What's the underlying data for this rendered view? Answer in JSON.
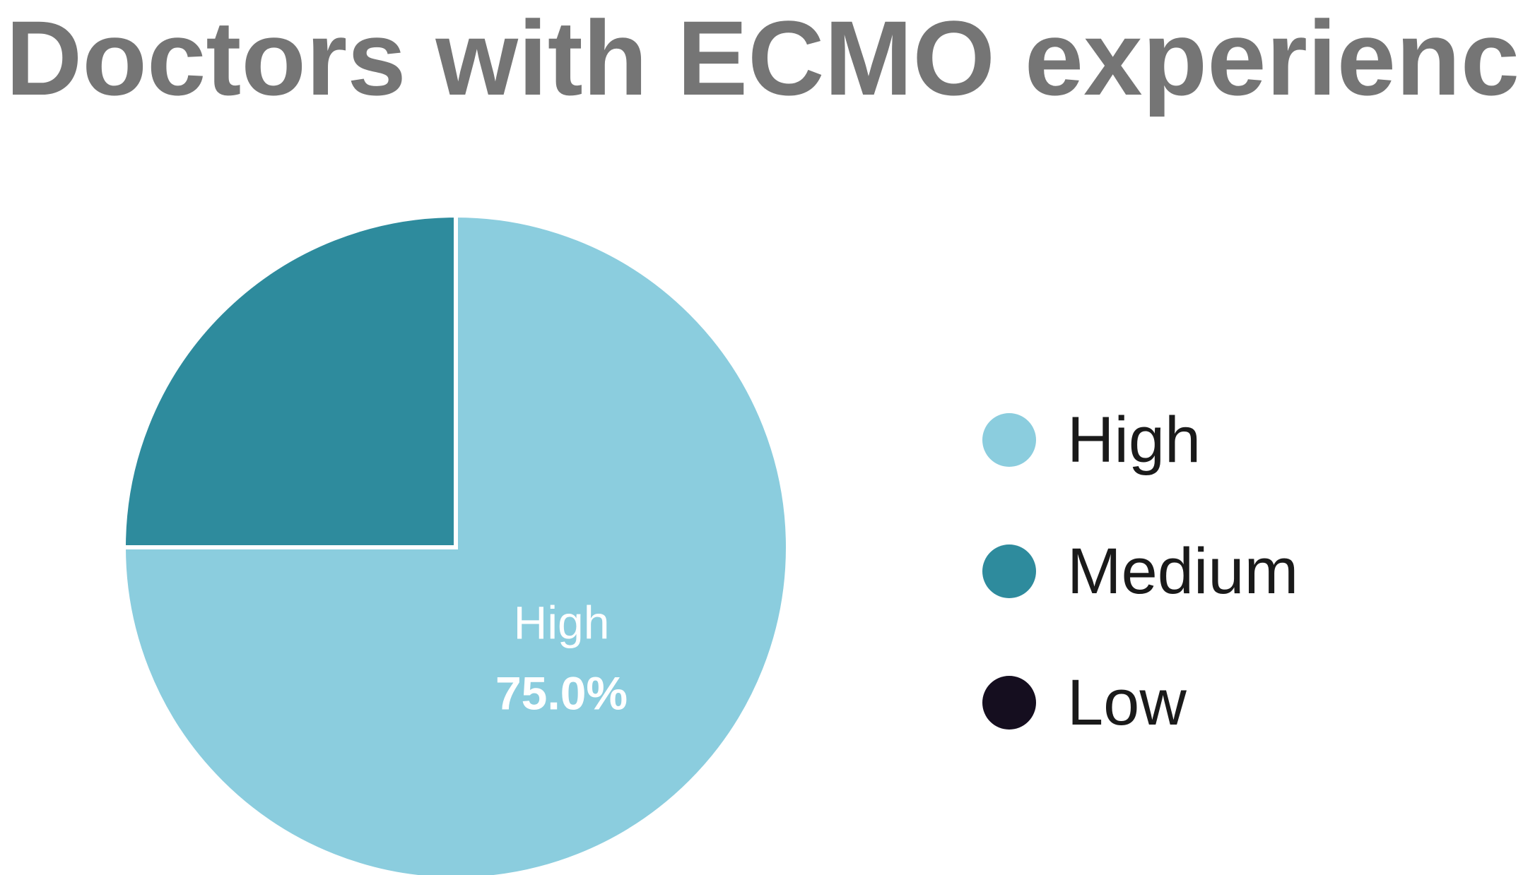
{
  "chart_data": {
    "type": "pie",
    "title": "Doctors with ECMO experience",
    "slices": [
      {
        "label": "High",
        "value": 75.0,
        "color": "#8BCDDE",
        "data_label": "75.0%"
      },
      {
        "label": "Medium",
        "value": 25.0,
        "color": "#2E8B9D",
        "data_label": ""
      },
      {
        "label": "Low",
        "value": 0.0,
        "color": "#150E1F",
        "data_label": ""
      }
    ],
    "start_angle": "12 o'clock",
    "direction": "clockwise",
    "legend": {
      "position": "right",
      "entries": [
        "High",
        "Medium",
        "Low"
      ]
    }
  }
}
